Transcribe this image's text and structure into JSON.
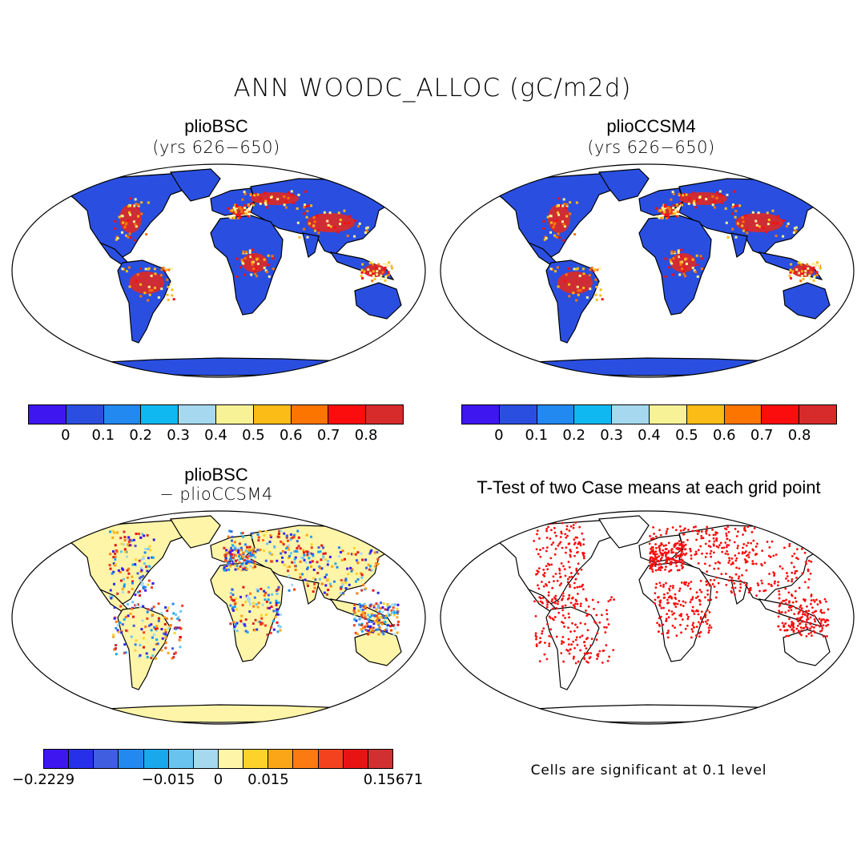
{
  "title": "ANN WOODC_ALLOC (gC/m2d)",
  "panels": {
    "top_left": {
      "title": "plioBSC",
      "subtitle": "(yrs 626−650)"
    },
    "top_right": {
      "title": "plioCCSM4",
      "subtitle": "(yrs 626−650)"
    },
    "bottom_left": {
      "title": "plioBSC",
      "subtitle": "− plioCCSM4"
    },
    "bottom_right": {
      "title": "T-Test of two Case means at each grid point",
      "note": "Cells are significant at 0.1 level"
    }
  },
  "colorbar_abs": {
    "colors": [
      "#3d16f0",
      "#2a4fe0",
      "#2189f0",
      "#0fb8f0",
      "#a6d8f0",
      "#f7f296",
      "#fbbc17",
      "#fc7500",
      "#fc0d0d",
      "#d72b2b"
    ],
    "tick_labels": [
      "0",
      "0.1",
      "0.2",
      "0.3",
      "0.4",
      "0.5",
      "0.6",
      "0.7",
      "0.8"
    ]
  },
  "colorbar_diff": {
    "colors": [
      "#3d16f0",
      "#2630e8",
      "#3f5fe0",
      "#2189f0",
      "#1aa8ec",
      "#68c4ee",
      "#a6d8f0",
      "#fff5a8",
      "#fdd22b",
      "#fba617",
      "#fc7a12",
      "#f4421e",
      "#e81414",
      "#d03030"
    ],
    "tick_labels": [
      "−0.2229",
      "−0.015",
      "0",
      "0.015",
      "0.15671"
    ]
  },
  "colors": {
    "land_low": "#2a4fe0",
    "ocean": "#ffffff",
    "significant": "#fc0d0d",
    "diff_neutral": "#fff5a8"
  }
}
